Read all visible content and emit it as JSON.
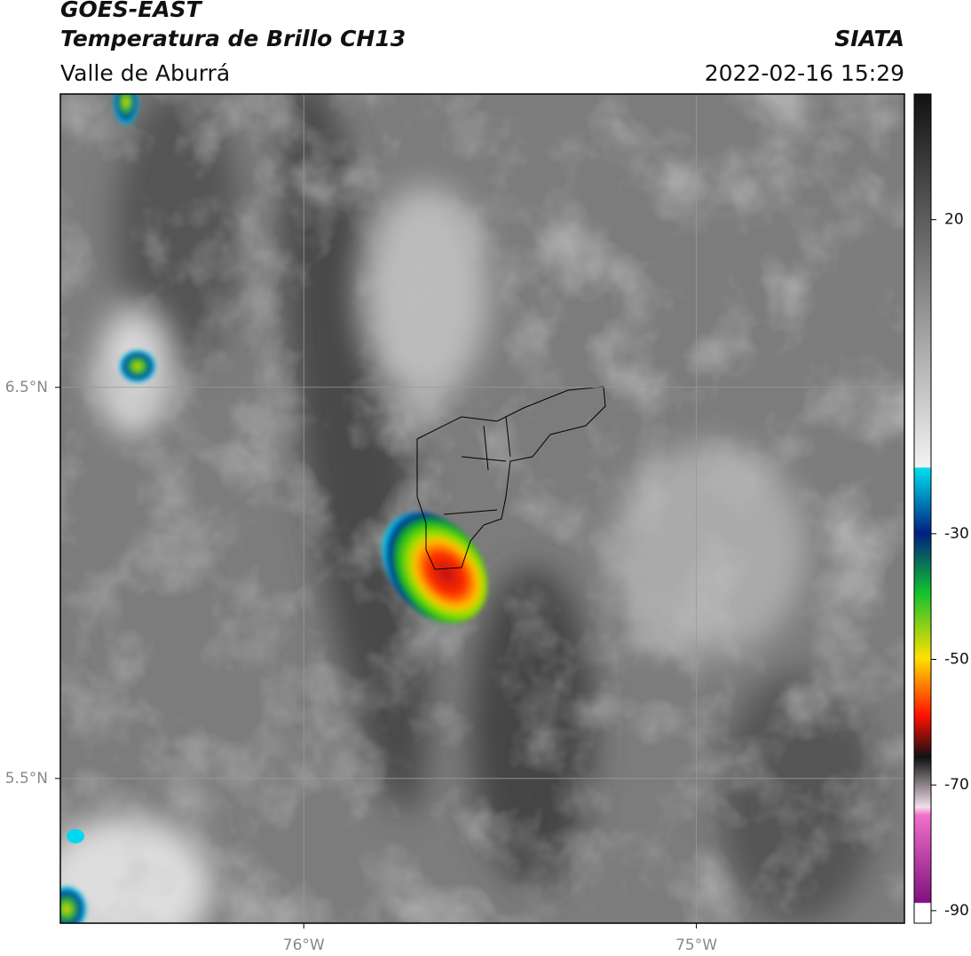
{
  "header": {
    "title": "GOES-EAST",
    "subtitle": "Temperatura de Brillo CH13",
    "region": "Valle de Aburrá",
    "source": "SIATA",
    "datetime": "2022-02-16 15:29"
  },
  "map": {
    "xlim": [
      -76.62,
      -74.47
    ],
    "ylim": [
      5.13,
      7.25
    ],
    "xticks": [
      {
        "value": -76,
        "label": "76°W"
      },
      {
        "value": -75,
        "label": "75°W"
      }
    ],
    "yticks": [
      {
        "value": 6.5,
        "label": "6.5°N"
      },
      {
        "value": 5.5,
        "label": "5.5°N"
      }
    ],
    "grid": true
  },
  "colorbar": {
    "lim": [
      -92,
      40
    ],
    "ticks": [
      20,
      -30,
      -50,
      -70,
      -90
    ]
  }
}
